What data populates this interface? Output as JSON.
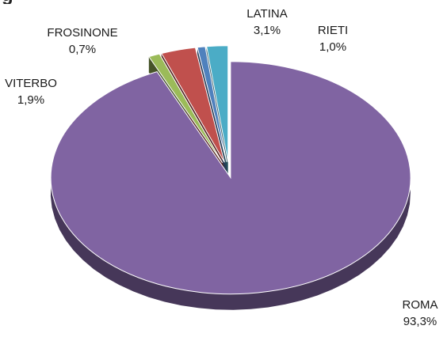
{
  "chart_data": {
    "type": "pie",
    "title": "",
    "slices": [
      {
        "label": "ROMA",
        "value_text": "93,3%",
        "value": 93.3,
        "color": "#8064A2"
      },
      {
        "label": "RIETI",
        "value_text": "1,0%",
        "value": 1.0,
        "color": "#9BBB59"
      },
      {
        "label": "LATINA",
        "value_text": "3,1%",
        "value": 3.1,
        "color": "#C0504D"
      },
      {
        "label": "FROSINONE",
        "value_text": "0,7%",
        "value": 0.7,
        "color": "#4F81BD"
      },
      {
        "label": "VITERBO",
        "value_text": "1,9%",
        "value": 1.9,
        "color": "#4BACC6"
      }
    ],
    "style": "3d-exploded"
  },
  "partial_title": {
    "text": "g"
  }
}
